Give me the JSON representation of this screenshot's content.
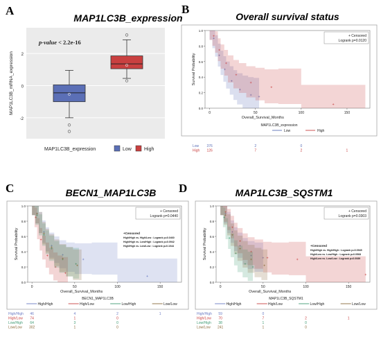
{
  "panels": {
    "A": {
      "letter": "A",
      "title": "MAP1LC3B_expression"
    },
    "B": {
      "letter": "B",
      "title": "Overall survival status"
    },
    "C": {
      "letter": "C",
      "title": "BECN1_MAP1LC3B"
    },
    "D": {
      "letter": "D",
      "title": "MAP1LC3B_SQSTM1"
    }
  },
  "colors": {
    "low": "#5b6fb6",
    "high": "#c94040",
    "gray": "#555555"
  },
  "chart_data": [
    {
      "id": "A",
      "type": "box",
      "ylabel": "MAP1LC3B_mRNA_expression",
      "yticks": [
        "-2",
        "0",
        "2"
      ],
      "ytick_values": [
        -2,
        0,
        2
      ],
      "ylim": [
        -3.3,
        3.6
      ],
      "annotation_prefix": "p-value",
      "annotation_value": "< 2.2e-16",
      "legend_title": "MAP1LC3B_expression",
      "categories": [
        "Low",
        "High"
      ],
      "boxes": [
        {
          "name": "Low",
          "whisker_low": -2.0,
          "q1": -1.0,
          "median": -0.45,
          "q3": 0.05,
          "whisker_high": 0.95,
          "outliers": [
            -2.45,
            -2.85
          ]
        },
        {
          "name": "High",
          "whisker_low": 0.45,
          "q1": 1.05,
          "median": 1.35,
          "q3": 1.85,
          "whisker_high": 2.85,
          "outliers": [
            0.3,
            3.15
          ]
        }
      ]
    },
    {
      "id": "B",
      "type": "line",
      "xlabel": "Overall_Survival_Months",
      "ylabel": "Survival Probability",
      "xticks": [
        "0",
        "50",
        "100",
        "150"
      ],
      "yticks": [
        "0.0",
        "0.2",
        "0.4",
        "0.6",
        "0.8",
        "1.0"
      ],
      "xlim": [
        -5,
        175
      ],
      "ylim": [
        0,
        1
      ],
      "legend_box": [
        "+ Censored",
        "Logrank p=0.0120"
      ],
      "legend_title": "MAP1LC3B_expression",
      "series": [
        {
          "name": "Low",
          "x": [
            0,
            3,
            6,
            9,
            12,
            15,
            18,
            22,
            26,
            30,
            36,
            42,
            48,
            54
          ],
          "y": [
            1.0,
            0.9,
            0.8,
            0.68,
            0.58,
            0.5,
            0.42,
            0.35,
            0.29,
            0.24,
            0.2,
            0.17,
            0.15,
            0.15
          ]
        },
        {
          "name": "High",
          "x": [
            0,
            3,
            6,
            9,
            12,
            16,
            20,
            26,
            32,
            40,
            50,
            60,
            75,
            100,
            170
          ],
          "y": [
            1.0,
            0.93,
            0.85,
            0.75,
            0.66,
            0.58,
            0.5,
            0.43,
            0.38,
            0.33,
            0.3,
            0.27,
            0.27,
            0.05,
            0.05
          ]
        }
      ],
      "risk_table": {
        "rows": [
          {
            "name": "Low",
            "counts": [
              "376",
              "2",
              "0",
              ""
            ]
          },
          {
            "name": "High",
            "counts": [
              "126",
              "7",
              "2",
              "1"
            ]
          }
        ]
      }
    },
    {
      "id": "C",
      "type": "line",
      "xlabel": "Overall_Survival_Months",
      "ylabel": "Survival Probability",
      "xticks": [
        "0",
        "50",
        "100",
        "150"
      ],
      "yticks": [
        "0.0",
        "0.2",
        "0.4",
        "0.6",
        "0.8",
        "1.0"
      ],
      "xlim": [
        -5,
        175
      ],
      "ylim": [
        0,
        1
      ],
      "legend_box": [
        "+ Censored",
        "Logrank p=0.0440"
      ],
      "comparisons": [
        "+Censored",
        "High/High vs. High/Low : Logrank p=0.0460",
        "High/High vs. Low/High : Logrank p=0.0942",
        "High/High vs. Low/Low : Logrank p=0.1044"
      ],
      "legend_title": "BECN1_MAP1LC3B",
      "series": [
        {
          "name": "High/High",
          "color": "#6a7bc4",
          "x": [
            0,
            4,
            8,
            12,
            16,
            20,
            26,
            32,
            40,
            50,
            70,
            100,
            170
          ],
          "y": [
            1.0,
            0.9,
            0.78,
            0.66,
            0.56,
            0.48,
            0.42,
            0.36,
            0.32,
            0.3,
            0.3,
            0.08,
            0.08
          ]
        },
        {
          "name": "High/Low",
          "color": "#c94040",
          "x": [
            0,
            3,
            6,
            9,
            12,
            16,
            20,
            25,
            30,
            36,
            42
          ],
          "y": [
            1.0,
            0.85,
            0.7,
            0.56,
            0.45,
            0.35,
            0.27,
            0.2,
            0.15,
            0.12,
            0.12
          ]
        },
        {
          "name": "Low/High",
          "color": "#3f9a73",
          "x": [
            0,
            4,
            8,
            12,
            16,
            20,
            26,
            32,
            40,
            48,
            55
          ],
          "y": [
            1.0,
            0.88,
            0.75,
            0.62,
            0.52,
            0.44,
            0.36,
            0.3,
            0.26,
            0.24,
            0.24
          ]
        },
        {
          "name": "Low/Low",
          "color": "#8a6a3a",
          "x": [
            0,
            4,
            8,
            12,
            16,
            20,
            26,
            32,
            40,
            48,
            58
          ],
          "y": [
            1.0,
            0.9,
            0.78,
            0.64,
            0.54,
            0.46,
            0.38,
            0.31,
            0.26,
            0.22,
            0.2
          ]
        }
      ],
      "risk_table": {
        "rows": [
          {
            "name": "High/High",
            "counts": [
              "46",
              "4",
              "2",
              "1"
            ]
          },
          {
            "name": "High/Low",
            "counts": [
              "74",
              "1",
              "0",
              ""
            ]
          },
          {
            "name": "Low/High",
            "counts": [
              "64",
              "3",
              "0",
              ""
            ]
          },
          {
            "name": "Low/Low",
            "counts": [
              "302",
              "1",
              "0",
              ""
            ]
          }
        ]
      }
    },
    {
      "id": "D",
      "type": "line",
      "xlabel": "Overall_Survival_Months",
      "ylabel": "Survival Probability",
      "xticks": [
        "0",
        "50",
        "100",
        "150"
      ],
      "yticks": [
        "0.0",
        "0.2",
        "0.4",
        "0.6",
        "0.8",
        "1.0"
      ],
      "xlim": [
        -5,
        175
      ],
      "ylim": [
        0,
        1
      ],
      "legend_box": [
        "+ Censored",
        "Logrank p=0.0303"
      ],
      "comparisons": [
        "+Censored",
        "High/High vs. High/High : Logrank p=0.0945",
        "High/Low vs. Low/High : Logrank p=0.0568",
        "High/Low vs. Low/Low : Logrank p=0.0089"
      ],
      "legend_title": "MAP1LC3B_SQSTM1",
      "series": [
        {
          "name": "High/High",
          "color": "#6a7bc4",
          "x": [
            0,
            4,
            8,
            12,
            16,
            20,
            26,
            32,
            40,
            50
          ],
          "y": [
            1.0,
            0.9,
            0.78,
            0.66,
            0.56,
            0.48,
            0.4,
            0.35,
            0.32,
            0.32
          ]
        },
        {
          "name": "High/Low",
          "color": "#c94040",
          "x": [
            0,
            4,
            8,
            12,
            16,
            20,
            26,
            32,
            40,
            50,
            60,
            80,
            100,
            170
          ],
          "y": [
            1.0,
            0.92,
            0.82,
            0.72,
            0.62,
            0.54,
            0.46,
            0.4,
            0.36,
            0.32,
            0.3,
            0.3,
            0.1,
            0.1
          ]
        },
        {
          "name": "Low/High",
          "color": "#3f9a73",
          "x": [
            0,
            3,
            6,
            9,
            12,
            16,
            20,
            26,
            32,
            38
          ],
          "y": [
            1.0,
            0.85,
            0.7,
            0.58,
            0.48,
            0.38,
            0.3,
            0.24,
            0.2,
            0.2
          ]
        },
        {
          "name": "Low/Low",
          "color": "#8a6a3a",
          "x": [
            0,
            4,
            8,
            12,
            16,
            20,
            26,
            32,
            40,
            48,
            55
          ],
          "y": [
            1.0,
            0.88,
            0.75,
            0.62,
            0.52,
            0.44,
            0.36,
            0.3,
            0.25,
            0.22,
            0.2
          ]
        }
      ],
      "risk_table": {
        "rows": [
          {
            "name": "High/High",
            "counts": [
              "59",
              "0",
              "",
              ""
            ]
          },
          {
            "name": "High/Low",
            "counts": [
              "70",
              "7",
              "2",
              "1"
            ]
          },
          {
            "name": "Low/High",
            "counts": [
              "38",
              "1",
              "0",
              ""
            ]
          },
          {
            "name": "Low/Low",
            "counts": [
              "241",
              "1",
              "0",
              ""
            ]
          }
        ]
      }
    }
  ]
}
